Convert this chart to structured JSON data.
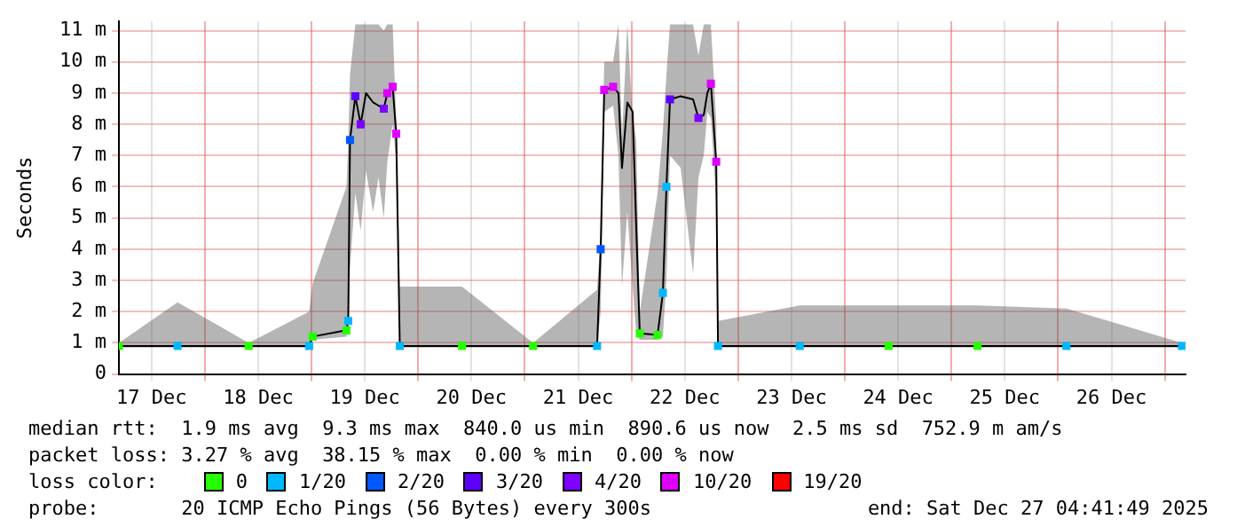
{
  "chart_data": {
    "type": "line",
    "ylabel": "Seconds",
    "grid": true,
    "legend": "bottom",
    "legend_title": "loss color:",
    "xlim": [
      "2025-12-17T04:40",
      "2025-12-27T04:40"
    ],
    "xticks": [
      {
        "value": "2025-12-17T12:00",
        "label": "17 Dec"
      },
      {
        "value": "2025-12-18T00:00",
        "label": null
      },
      {
        "value": "2025-12-18T12:00",
        "label": "18 Dec"
      },
      {
        "value": "2025-12-19T00:00",
        "label": null
      },
      {
        "value": "2025-12-19T12:00",
        "label": "19 Dec"
      },
      {
        "value": "2025-12-20T00:00",
        "label": null
      },
      {
        "value": "2025-12-20T12:00",
        "label": "20 Dec"
      },
      {
        "value": "2025-12-21T00:00",
        "label": null
      },
      {
        "value": "2025-12-21T12:00",
        "label": "21 Dec"
      },
      {
        "value": "2025-12-22T00:00",
        "label": null
      },
      {
        "value": "2025-12-22T12:00",
        "label": "22 Dec"
      },
      {
        "value": "2025-12-23T00:00",
        "label": null
      },
      {
        "value": "2025-12-23T12:00",
        "label": "23 Dec"
      },
      {
        "value": "2025-12-24T00:00",
        "label": null
      },
      {
        "value": "2025-12-24T12:00",
        "label": "24 Dec"
      },
      {
        "value": "2025-12-25T00:00",
        "label": null
      },
      {
        "value": "2025-12-25T12:00",
        "label": "25 Dec"
      },
      {
        "value": "2025-12-26T00:00",
        "label": null
      },
      {
        "value": "2025-12-26T12:00",
        "label": "26 Dec"
      },
      {
        "value": "2025-12-27T00:00",
        "label": null
      }
    ],
    "ylim": [
      0,
      11.3
    ],
    "yticks": [
      0,
      {
        "value": 1,
        "label": "1 m"
      },
      {
        "value": 2,
        "label": "2 m"
      },
      {
        "value": 3,
        "label": "3 m"
      },
      {
        "value": 4,
        "label": "4 m"
      },
      {
        "value": 5,
        "label": "5 m"
      },
      {
        "value": 6,
        "label": "6 m"
      },
      {
        "value": 7,
        "label": "7 m"
      },
      {
        "value": 8,
        "label": "8 m"
      },
      {
        "value": 9,
        "label": "9 m"
      },
      {
        "value": 10,
        "label": "10 m"
      },
      {
        "value": 11,
        "label": "11 m"
      }
    ],
    "annotations": [
      "median rtt:  1.9 ms avg  9.3 ms max  840.0 us min  890.6 us now  2.5 ms sd  752.9 m am/s",
      "packet loss: 3.27 % avg  38.15 % max  0.00 % min  0.00 % now",
      "probe:       20 ICMP Echo Pings (56 Bytes) every 300s",
      "end: Sat Dec 27 04:41:49 2025"
    ],
    "series": [
      {
        "type": "line",
        "color": "#000000",
        "x": [
          "2025-12-17T04:40",
          "2025-12-17T17:52",
          "2025-12-18T09:52",
          "2025-12-18T23:28",
          "2025-12-19T00:16",
          "2025-12-19T07:52",
          "2025-12-19T08:16",
          "2025-12-19T08:40",
          "2025-12-19T09:52",
          "2025-12-19T11:04",
          "2025-12-19T12:16",
          "2025-12-19T13:52",
          "2025-12-19T15:04",
          "2025-12-19T16:16",
          "2025-12-19T17:04",
          "2025-12-19T18:16",
          "2025-12-19T19:04",
          "2025-12-19T19:52",
          "2025-12-20T09:52",
          "2025-12-21T01:52",
          "2025-12-21T16:16",
          "2025-12-21T17:04",
          "2025-12-21T17:52",
          "2025-12-21T19:52",
          "2025-12-21T21:04",
          "2025-12-21T21:52",
          "2025-12-21T23:04",
          "2025-12-22T00:16",
          "2025-12-22T01:04",
          "2025-12-22T01:52",
          "2025-12-22T05:52",
          "2025-12-22T07:04",
          "2025-12-22T07:52",
          "2025-12-22T08:40",
          "2025-12-22T11:04",
          "2025-12-22T13:52",
          "2025-12-22T15:04",
          "2025-12-22T16:16",
          "2025-12-22T17:04",
          "2025-12-22T17:52",
          "2025-12-22T19:04",
          "2025-12-22T19:28",
          "2025-12-23T13:52",
          "2025-12-24T09:52",
          "2025-12-25T05:52",
          "2025-12-26T01:52",
          "2025-12-27T03:52"
        ],
        "values": [
          0.9,
          0.9,
          0.9,
          0.9,
          1.2,
          1.4,
          1.7,
          7.5,
          8.9,
          8.0,
          9.0,
          8.7,
          8.6,
          8.5,
          9.0,
          9.2,
          7.7,
          0.9,
          0.9,
          0.9,
          0.9,
          4.0,
          9.1,
          9.2,
          9.0,
          6.6,
          8.7,
          8.4,
          4.7,
          1.3,
          1.25,
          2.6,
          6.0,
          8.8,
          8.9,
          8.8,
          8.2,
          8.3,
          9.0,
          9.3,
          6.8,
          0.9,
          0.9,
          0.9,
          0.9,
          0.9,
          0.9
        ],
        "lower": [
          0.85,
          0.85,
          0.85,
          0.85,
          1.1,
          1.2,
          1.5,
          3.4,
          5.8,
          4.6,
          6.5,
          5.2,
          6.3,
          5.0,
          6.8,
          8.0,
          6.8,
          0.85,
          0.85,
          0.85,
          0.85,
          2.0,
          8.4,
          8.6,
          7.0,
          2.8,
          5.2,
          2.8,
          1.3,
          1.1,
          1.1,
          1.2,
          3.0,
          7.0,
          6.6,
          3.2,
          6.3,
          7.0,
          8.4,
          8.2,
          5.5,
          0.85,
          0.85,
          0.85,
          0.85,
          0.85,
          0.85
        ],
        "upper": [
          1.0,
          2.3,
          1.0,
          2.0,
          2.9,
          6.0,
          7.4,
          9.6,
          11.2,
          11.2,
          11.2,
          11.2,
          11.2,
          11.0,
          11.2,
          11.2,
          8.1,
          2.8,
          2.8,
          1.0,
          2.7,
          4.4,
          10.0,
          10.0,
          11.2,
          7.6,
          11.2,
          8.2,
          7.5,
          2.0,
          5.8,
          7.8,
          9.6,
          11.2,
          11.2,
          11.2,
          10.2,
          11.2,
          11.2,
          11.2,
          8.1,
          1.7,
          2.2,
          2.2,
          2.2,
          2.1,
          1.0
        ]
      },
      {
        "type": "scatter",
        "name": "0",
        "color": "#26ff00",
        "marker": "square",
        "x": [
          "2025-12-17T04:40",
          "2025-12-18T09:52",
          "2025-12-19T00:16",
          "2025-12-19T07:52",
          "2025-12-20T09:52",
          "2025-12-21T01:52",
          "2025-12-22T01:52",
          "2025-12-22T05:52",
          "2025-12-24T09:52",
          "2025-12-25T05:52"
        ],
        "values": [
          0.9,
          0.9,
          1.2,
          1.4,
          0.9,
          0.9,
          1.3,
          1.25,
          0.9,
          0.9
        ]
      },
      {
        "type": "scatter",
        "name": "1/20",
        "color": "#00b8ff",
        "marker": "square",
        "x": [
          "2025-12-17T17:52",
          "2025-12-18T23:28",
          "2025-12-19T08:16",
          "2025-12-19T19:52",
          "2025-12-21T16:16",
          "2025-12-22T07:04",
          "2025-12-22T07:52",
          "2025-12-22T19:28",
          "2025-12-23T13:52",
          "2025-12-26T01:52",
          "2025-12-27T03:52"
        ],
        "values": [
          0.9,
          0.9,
          1.7,
          0.9,
          0.9,
          2.6,
          6.0,
          0.9,
          0.9,
          0.9,
          0.9
        ]
      },
      {
        "type": "scatter",
        "name": "2/20",
        "color": "#0059ff",
        "marker": "square",
        "x": [
          "2025-12-19T08:40",
          "2025-12-21T17:04"
        ],
        "values": [
          7.5,
          4.0
        ]
      },
      {
        "type": "scatter",
        "name": "3/20",
        "color": "#5e00ff",
        "marker": "square",
        "x": [
          "2025-12-19T09:52",
          "2025-12-22T08:40"
        ],
        "values": [
          8.9,
          8.8
        ]
      },
      {
        "type": "scatter",
        "name": "4/20",
        "color": "#7e00ff",
        "marker": "square",
        "x": [
          "2025-12-19T11:04",
          "2025-12-19T16:16",
          "2025-12-22T15:04"
        ],
        "values": [
          8.0,
          8.5,
          8.2
        ]
      },
      {
        "type": "scatter",
        "name": "10/20",
        "color": "#dd00ff",
        "marker": "square",
        "x": [
          "2025-12-19T17:04",
          "2025-12-19T18:16",
          "2025-12-19T19:04",
          "2025-12-21T17:52",
          "2025-12-21T19:52",
          "2025-12-22T17:52",
          "2025-12-22T19:04"
        ],
        "values": [
          9.0,
          9.2,
          7.7,
          9.1,
          9.2,
          9.3,
          6.8
        ]
      },
      {
        "type": "scatter",
        "name": "19/20",
        "color": "#ff0000",
        "marker": "square"
      }
    ]
  }
}
